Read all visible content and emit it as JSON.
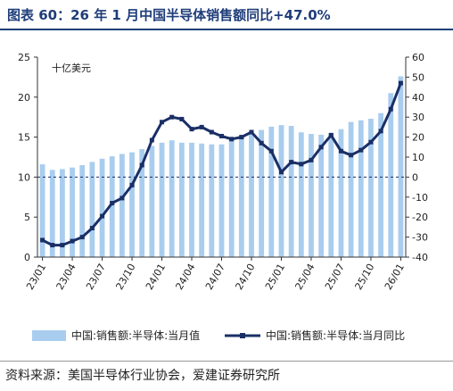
{
  "title": "图表 60：26 年 1 月中国半导体销售额同比+47.0%",
  "source": "资料来源：美国半导体行业协会，爱建证券研究所",
  "chart_data": {
    "type": "bar",
    "unit_label": "十亿美元",
    "x_ticks": [
      "23/01",
      "23/04",
      "23/07",
      "23/10",
      "24/01",
      "24/04",
      "24/07",
      "24/10",
      "25/01",
      "25/04",
      "25/07",
      "25/10",
      "26/01"
    ],
    "categories": [
      "23/01",
      "23/02",
      "23/03",
      "23/04",
      "23/05",
      "23/06",
      "23/07",
      "23/08",
      "23/09",
      "23/10",
      "23/11",
      "23/12",
      "24/01",
      "24/02",
      "24/03",
      "24/04",
      "24/05",
      "24/06",
      "24/07",
      "24/08",
      "24/09",
      "24/10",
      "24/11",
      "24/12",
      "25/01",
      "25/02",
      "25/03",
      "25/04",
      "25/05",
      "25/06",
      "25/07",
      "25/08",
      "25/09",
      "25/10",
      "25/11",
      "25/12",
      "26/01"
    ],
    "y_left": {
      "min": 0,
      "max": 25,
      "ticks": [
        0,
        5,
        10,
        15,
        20,
        25
      ]
    },
    "y_right": {
      "min": -40,
      "max": 60,
      "ticks": [
        -40,
        -30,
        -20,
        -10,
        0,
        10,
        20,
        30,
        40,
        50,
        60
      ]
    },
    "series": [
      {
        "name": "中国:销售额:半导体:当月值",
        "type": "bar",
        "axis": "left",
        "color": "#a9cdee",
        "values": [
          11.6,
          10.9,
          11.0,
          11.2,
          11.5,
          11.9,
          12.3,
          12.6,
          12.9,
          13.1,
          13.5,
          13.9,
          14.3,
          14.6,
          14.3,
          14.3,
          14.2,
          14.1,
          14.1,
          14.7,
          15.2,
          15.5,
          15.9,
          16.3,
          16.5,
          16.4,
          15.6,
          15.4,
          15.3,
          15.5,
          16.0,
          16.9,
          17.1,
          17.3,
          18.0,
          20.5,
          22.6
        ]
      },
      {
        "name": "中国:销售额:半导体:当月同比",
        "type": "line",
        "axis": "right",
        "color": "#1a2f66",
        "values": [
          -31.5,
          -34,
          -34,
          -32,
          -30,
          -25.5,
          -19.5,
          -13,
          -10.5,
          -4,
          6,
          18.5,
          27.5,
          30,
          29,
          24,
          25,
          22.5,
          20.5,
          19,
          20,
          22.5,
          17,
          13,
          2.5,
          7.5,
          6.5,
          8.5,
          15,
          21,
          13,
          11,
          13.5,
          17.5,
          23,
          34,
          47
        ]
      }
    ],
    "reference_line": {
      "axis": "right",
      "value": 0,
      "style": "dashed",
      "color": "#1a2f66"
    },
    "legend_position": "bottom"
  }
}
